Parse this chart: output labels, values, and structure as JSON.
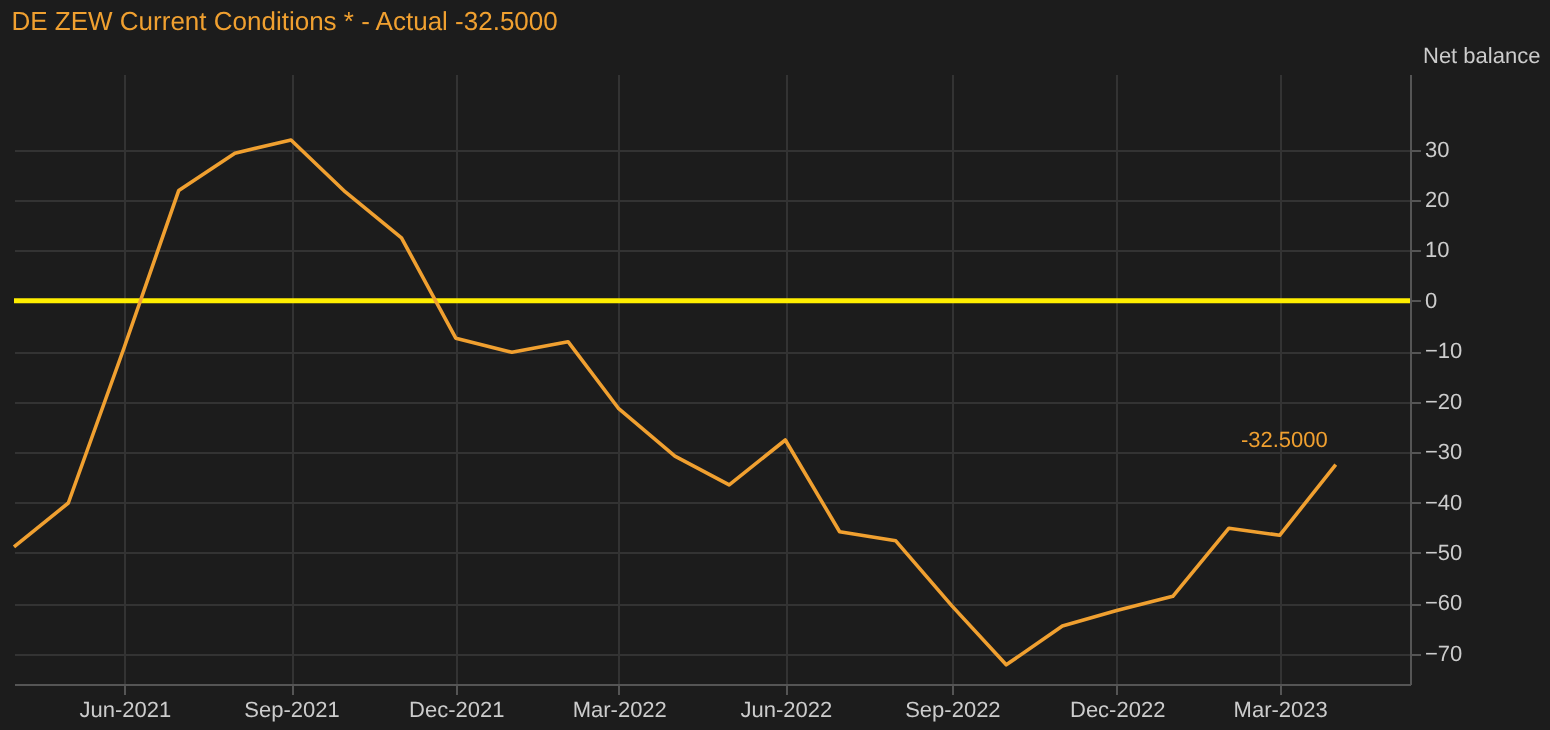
{
  "chart_data": {
    "type": "line",
    "title": "DE ZEW Current Conditions * - Actual -32.5000",
    "ylabel": "Net balance",
    "x": [
      "2021-04",
      "2021-05",
      "2021-06",
      "2021-07",
      "2021-08",
      "2021-09",
      "2021-10",
      "2021-11",
      "2021-12",
      "2022-01",
      "2022-02",
      "2022-03",
      "2022-04",
      "2022-05",
      "2022-06",
      "2022-07",
      "2022-08",
      "2022-09",
      "2022-10",
      "2022-11",
      "2022-12",
      "2023-01",
      "2023-02",
      "2023-03",
      "2023-04"
    ],
    "series": [
      {
        "color": "#f0a030",
        "values": [
          -48.8,
          -40.1,
          -9.1,
          21.9,
          29.3,
          31.9,
          21.6,
          12.5,
          -7.4,
          -10.2,
          -8.1,
          -21.4,
          -30.8,
          -36.5,
          -27.6,
          -45.8,
          -47.6,
          -60.5,
          -72.2,
          -64.5,
          -61.4,
          -58.6,
          -45.1,
          -46.5,
          -32.5
        ]
      }
    ],
    "xlim": [
      "2021-04-01",
      "2023-05-12"
    ],
    "xticks": [
      {
        "value": "2021-06-01",
        "label": "Jun-2021"
      },
      {
        "value": "2021-09-01",
        "label": "Sep-2021"
      },
      {
        "value": "2021-12-01",
        "label": "Dec-2021"
      },
      {
        "value": "2022-03-01",
        "label": "Mar-2022"
      },
      {
        "value": "2022-06-01",
        "label": "Jun-2022"
      },
      {
        "value": "2022-09-01",
        "label": "Sep-2022"
      },
      {
        "value": "2022-12-01",
        "label": "Dec-2022"
      },
      {
        "value": "2023-03-01",
        "label": "Mar-2023"
      }
    ],
    "ylim": [
      -76,
      45
    ],
    "yticks": [
      -70,
      -60,
      -50,
      -40,
      -30,
      -20,
      -10,
      0,
      10,
      20,
      30
    ],
    "ref_lines": [
      {
        "axis": "y",
        "value": 0,
        "color": "#ffee00"
      }
    ],
    "annotations": [
      {
        "text": "-32.5000",
        "x": "2023-04",
        "y": -32.5
      }
    ],
    "grid": true,
    "marker": "none",
    "line_style": "solid"
  }
}
